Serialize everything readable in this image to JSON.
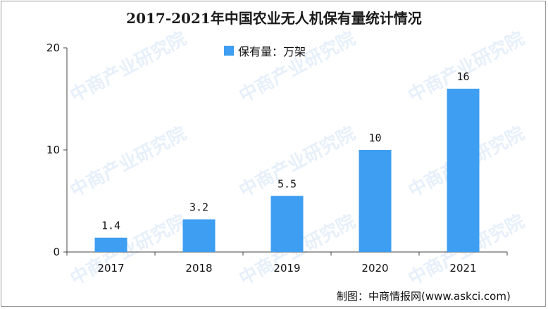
{
  "chart_data": {
    "type": "bar",
    "title": "2017-2021年中国农业无人机保有量统计情况",
    "categories": [
      "2017",
      "2018",
      "2019",
      "2020",
      "2021"
    ],
    "series": [
      {
        "name": "保有量：万架",
        "values": [
          1.4,
          3.2,
          5.5,
          10,
          16
        ]
      }
    ],
    "value_labels": [
      "1.4",
      "3.2",
      "5.5",
      "10",
      "16"
    ],
    "yticks": [
      "0",
      "10",
      "20"
    ],
    "ylim": [
      0,
      20
    ],
    "legend_position": "top-center",
    "bar_color": "#3d9ef2",
    "grid": false
  },
  "source": "制图：中商情报网(www.askci.com)",
  "watermark": "中商产业研究院"
}
